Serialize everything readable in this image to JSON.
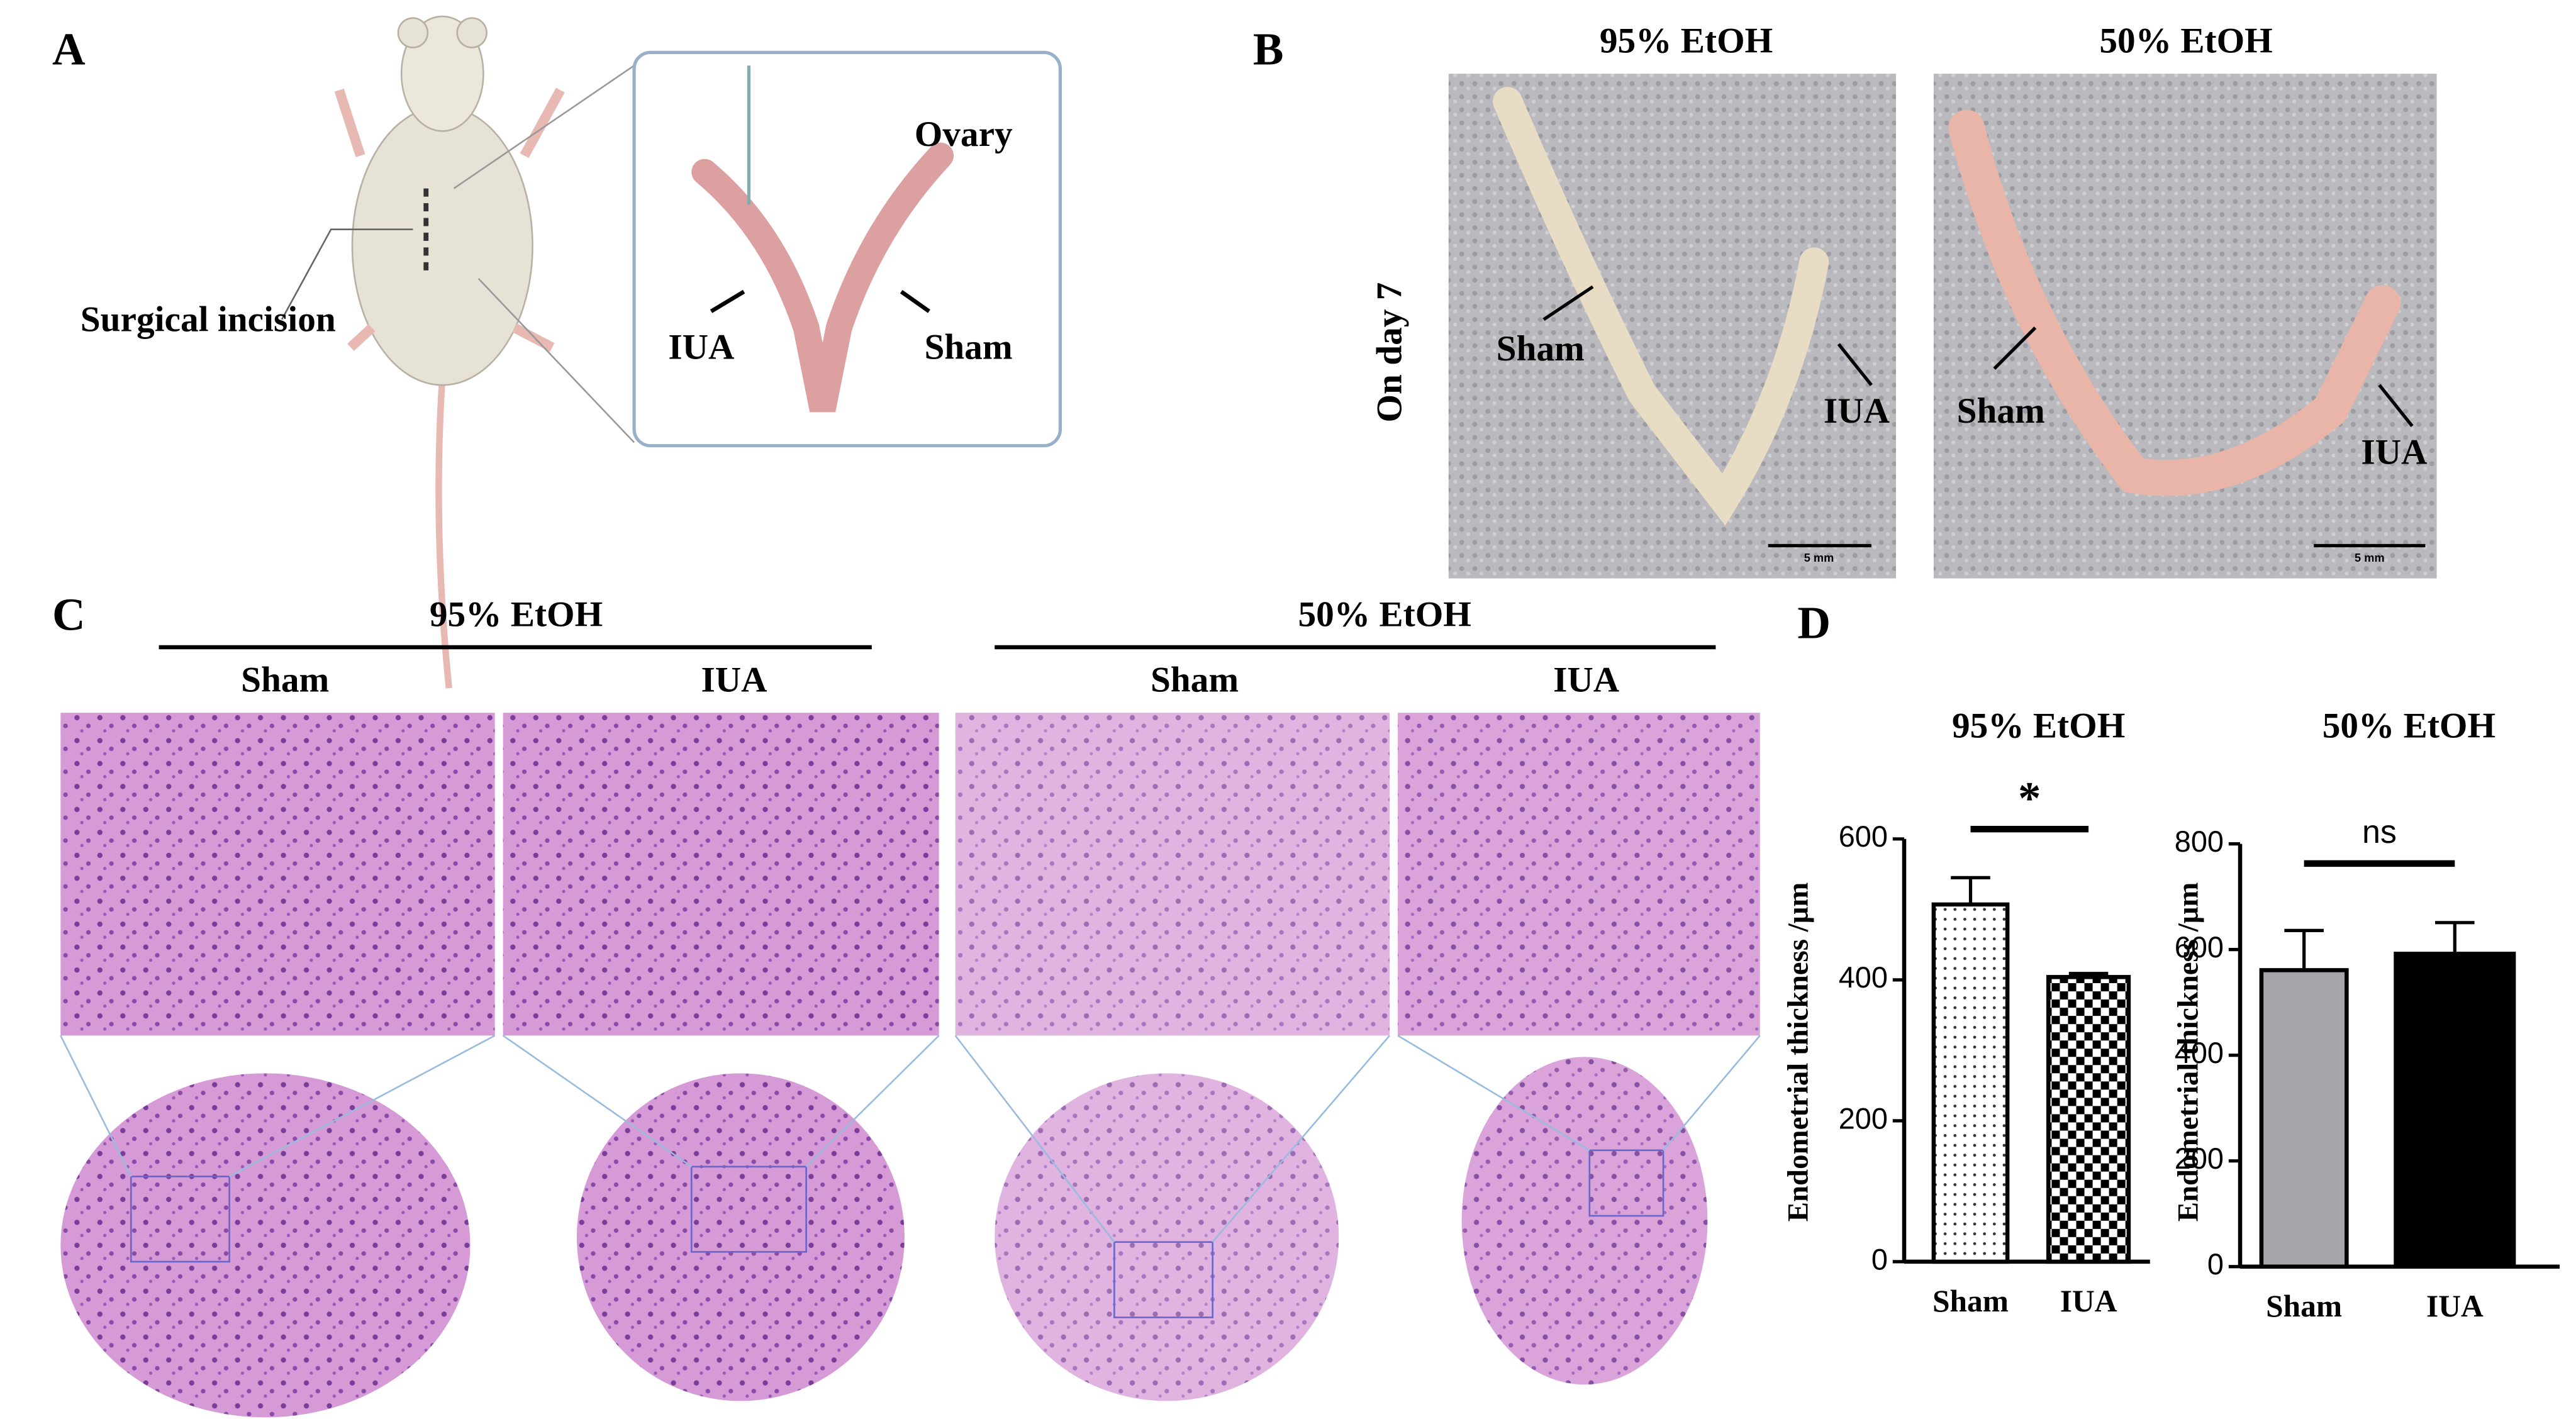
{
  "panel_labels": [
    "A",
    "B",
    "C",
    "D"
  ],
  "panel_a": {
    "incision": "Surgical incision",
    "ovary": "Ovary",
    "iua": "IUA",
    "sham": "Sham"
  },
  "panel_b": {
    "row_label": "On day 7",
    "photos": [
      {
        "title": "95% EtOH",
        "sham": "Sham",
        "iua": "IUA",
        "scale": "5 mm"
      },
      {
        "title": "50% EtOH",
        "sham": "Sham",
        "iua": "IUA",
        "scale": "5 mm"
      }
    ]
  },
  "panel_c": {
    "groups": [
      {
        "title": "95% EtOH",
        "columns": [
          "Sham",
          "IUA"
        ]
      },
      {
        "title": "50% EtOH",
        "columns": [
          "Sham",
          "IUA"
        ]
      }
    ]
  },
  "chart_data": [
    {
      "type": "bar",
      "title": "95% EtOH",
      "ylabel": "Endometrial thickness /μm",
      "categories": [
        "Sham",
        "IUA"
      ],
      "values": [
        507,
        404
      ],
      "errors": [
        38,
        5
      ],
      "fills": [
        "dots",
        "checker"
      ],
      "ylim": [
        0,
        600
      ],
      "yticks": [
        0,
        200,
        400,
        600
      ],
      "annotation": "*"
    },
    {
      "type": "bar",
      "title": "50% EtOH",
      "ylabel": "Endometrial thickness /μm",
      "categories": [
        "Sham",
        "IUA"
      ],
      "values": [
        561,
        592
      ],
      "errors": [
        75,
        59
      ],
      "fills": [
        "#a6a6aa",
        "#000000"
      ],
      "ylim": [
        0,
        800
      ],
      "yticks": [
        0,
        200,
        400,
        600,
        800
      ],
      "annotation": "ns"
    }
  ]
}
